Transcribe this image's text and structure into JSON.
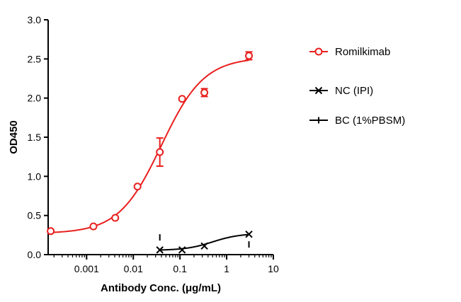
{
  "chart_data": {
    "type": "scatter",
    "xlabel": "Antibody Conc. (μg/mL)",
    "ylabel": "OD450",
    "xscale": "log",
    "xlim": [
      0.00015,
      10
    ],
    "ylim": [
      0,
      3.0
    ],
    "x_ticks": [
      0.001,
      0.01,
      0.1,
      1,
      10
    ],
    "x_tick_labels": [
      "0.001",
      "0.01",
      "0.1",
      "1",
      "10"
    ],
    "y_ticks": [
      0,
      0.5,
      1.0,
      1.5,
      2.0,
      2.5,
      3.0
    ],
    "y_tick_labels": [
      "0.0",
      "0.5",
      "1.0",
      "1.5",
      "2.0",
      "2.5",
      "3.0"
    ],
    "grid": false,
    "legend_position": "right",
    "series": [
      {
        "name": "Romilkimab",
        "color": "#e8201e",
        "marker": "open-circle",
        "points": [
          {
            "x": 0.00017,
            "y": 0.3,
            "err": 0
          },
          {
            "x": 0.0014,
            "y": 0.36,
            "err": 0
          },
          {
            "x": 0.0041,
            "y": 0.47,
            "err": 0
          },
          {
            "x": 0.0123,
            "y": 0.87,
            "err": 0
          },
          {
            "x": 0.037,
            "y": 1.31,
            "err": 0.18
          },
          {
            "x": 0.111,
            "y": 1.99,
            "err": 0
          },
          {
            "x": 0.333,
            "y": 2.07,
            "err": 0.05
          },
          {
            "x": 3.0,
            "y": 2.54,
            "err": 0.05
          }
        ],
        "fit": {
          "bottom": 0.27,
          "top": 2.52,
          "ec50": 0.04,
          "hill": 0.95
        }
      },
      {
        "name": "NC (IPI)",
        "color": "#000000",
        "marker": "x",
        "points": [
          {
            "x": 0.037,
            "y": 0.06
          },
          {
            "x": 0.111,
            "y": 0.06
          },
          {
            "x": 0.333,
            "y": 0.11
          },
          {
            "x": 3.0,
            "y": 0.26
          }
        ],
        "fit": {
          "bottom": 0.055,
          "top": 0.27,
          "ec50": 0.5,
          "hill": 1.5
        }
      },
      {
        "name": "BC (1%PBSM)",
        "color": "#000000",
        "marker": "vertical-dash",
        "points": [
          {
            "x": 0.037,
            "y": 0.22
          },
          {
            "x": 3.0,
            "y": 0.13
          }
        ]
      }
    ]
  }
}
